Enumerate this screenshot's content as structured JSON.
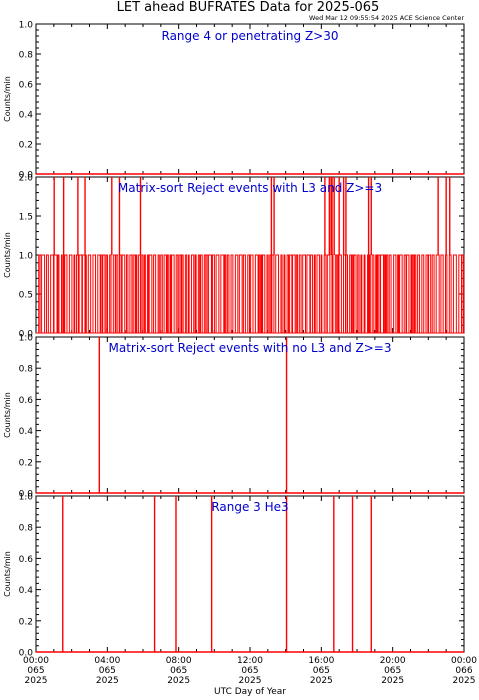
{
  "header": {
    "title": "LET ahead BUFRATES Data for 2025-065",
    "timestamp": "Wed Mar 12 09:55:54 2025 ACE Science Center"
  },
  "xaxis": {
    "label": "UTC Day of Year",
    "ticks": [
      {
        "t": 0,
        "time": "00:00",
        "doy": "065",
        "year": "2025"
      },
      {
        "t": 4,
        "time": "04:00",
        "doy": "065",
        "year": "2025"
      },
      {
        "t": 8,
        "time": "08:00",
        "doy": "065",
        "year": "2025"
      },
      {
        "t": 12,
        "time": "12:00",
        "doy": "065",
        "year": "2025"
      },
      {
        "t": 16,
        "time": "16:00",
        "doy": "065",
        "year": "2025"
      },
      {
        "t": 20,
        "time": "20:00",
        "doy": "065",
        "year": "2025"
      },
      {
        "t": 24,
        "time": "00:00",
        "doy": "066",
        "year": "2025"
      }
    ]
  },
  "colors": {
    "axes": "#000000",
    "data": "#ff0000",
    "panel_title": "#0000cc"
  },
  "chart_data": [
    {
      "type": "line",
      "title": "Range 4 or  penetrating Z>30",
      "ylabel": "Counts/min",
      "ylim": [
        0,
        1.0
      ],
      "yticks": [
        "0.0",
        "0.2",
        "0.4",
        "0.6",
        "0.8",
        "1.0"
      ],
      "xlim": [
        0,
        24
      ],
      "baseline": 0,
      "dense_ones": false,
      "spikes": []
    },
    {
      "type": "line",
      "title": "Matrix-sort Reject events with L3 and Z>=3",
      "ylabel": "Counts/min",
      "ylim": [
        0,
        2.0
      ],
      "yticks": [
        "0.0",
        "0.5",
        "1.0",
        "1.5",
        "2.0"
      ],
      "xlim": [
        0,
        24
      ],
      "baseline": 0,
      "dense_ones": true,
      "spikes": [
        {
          "x": 1.02,
          "y": 2
        },
        {
          "x": 1.55,
          "y": 2
        },
        {
          "x": 2.35,
          "y": 2
        },
        {
          "x": 2.75,
          "y": 2
        },
        {
          "x": 4.25,
          "y": 2
        },
        {
          "x": 4.68,
          "y": 2
        },
        {
          "x": 5.86,
          "y": 2
        },
        {
          "x": 13.2,
          "y": 2
        },
        {
          "x": 13.35,
          "y": 2
        },
        {
          "x": 16.2,
          "y": 2
        },
        {
          "x": 16.45,
          "y": 2
        },
        {
          "x": 16.55,
          "y": 2
        },
        {
          "x": 16.6,
          "y": 2
        },
        {
          "x": 16.72,
          "y": 2
        },
        {
          "x": 17.0,
          "y": 2
        },
        {
          "x": 17.25,
          "y": 2
        },
        {
          "x": 17.38,
          "y": 2
        },
        {
          "x": 18.65,
          "y": 2
        },
        {
          "x": 18.8,
          "y": 2
        },
        {
          "x": 22.55,
          "y": 2
        },
        {
          "x": 23.0,
          "y": 2
        },
        {
          "x": 23.2,
          "y": 2
        }
      ]
    },
    {
      "type": "line",
      "title": "Matrix-sort Reject events with no L3 and Z>=3",
      "ylabel": "Counts/min",
      "ylim": [
        0,
        1.0
      ],
      "yticks": [
        "0.0",
        "0.2",
        "0.4",
        "0.6",
        "0.8",
        "1.0"
      ],
      "xlim": [
        0,
        24
      ],
      "baseline": 0,
      "dense_ones": false,
      "spikes": [
        {
          "x": 3.55,
          "y": 1
        },
        {
          "x": 14.05,
          "y": 1
        }
      ]
    },
    {
      "type": "line",
      "title": "Range 3 He3",
      "ylabel": "Counts/min",
      "ylim": [
        0,
        1.0
      ],
      "yticks": [
        "0.0",
        "0.2",
        "0.4",
        "0.6",
        "0.8",
        "1.0"
      ],
      "xlim": [
        0,
        24
      ],
      "baseline": 0,
      "dense_ones": false,
      "spikes": [
        {
          "x": 1.5,
          "y": 1
        },
        {
          "x": 6.65,
          "y": 1
        },
        {
          "x": 7.85,
          "y": 1
        },
        {
          "x": 9.85,
          "y": 1
        },
        {
          "x": 14.05,
          "y": 1
        },
        {
          "x": 16.7,
          "y": 1
        },
        {
          "x": 17.75,
          "y": 1
        },
        {
          "x": 18.8,
          "y": 1
        }
      ]
    }
  ]
}
